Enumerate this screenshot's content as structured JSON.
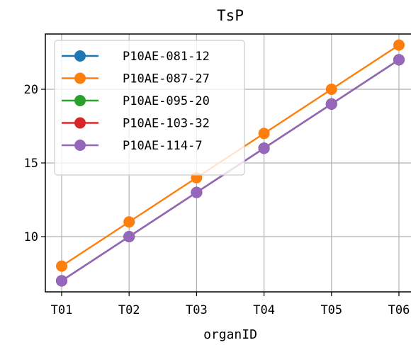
{
  "chart_data": {
    "type": "line",
    "title": "TsP",
    "xlabel": "organID",
    "ylabel": "",
    "categories": [
      "T01",
      "T02",
      "T03",
      "T04",
      "T05",
      "T06"
    ],
    "yticks": [
      10,
      15,
      20
    ],
    "ylim": [
      6.25,
      23.75
    ],
    "grid": true,
    "legend_position": "upper-left",
    "series": [
      {
        "name": "P10AE-081-12",
        "color": "#1f77b4",
        "values": [
          7,
          10,
          13,
          16,
          19,
          22
        ]
      },
      {
        "name": "P10AE-087-27",
        "color": "#ff7f0e",
        "values": [
          8,
          11,
          14,
          17,
          20,
          23
        ]
      },
      {
        "name": "P10AE-095-20",
        "color": "#2ca02c",
        "values": [
          7,
          10,
          13,
          16,
          19,
          22
        ]
      },
      {
        "name": "P10AE-103-32",
        "color": "#d62728",
        "values": [
          7,
          10,
          13,
          16,
          19,
          22
        ]
      },
      {
        "name": "P10AE-114-7",
        "color": "#9467bd",
        "values": [
          7,
          10,
          13,
          16,
          19,
          22
        ]
      }
    ]
  }
}
